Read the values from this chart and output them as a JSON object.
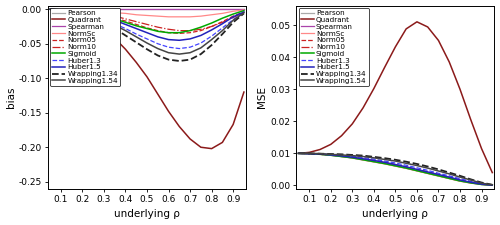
{
  "rho": [
    0.05,
    0.1,
    0.15,
    0.2,
    0.25,
    0.3,
    0.35,
    0.4,
    0.45,
    0.5,
    0.55,
    0.6,
    0.65,
    0.7,
    0.75,
    0.8,
    0.85,
    0.9,
    0.95
  ],
  "bias_ylim": [
    -0.26,
    0.005
  ],
  "bias_yticks": [
    -0.25,
    -0.2,
    -0.15,
    -0.1,
    -0.05,
    0.0
  ],
  "mse_ylim": [
    -0.001,
    0.056
  ],
  "mse_yticks": [
    0.0,
    0.01,
    0.02,
    0.03,
    0.04,
    0.05
  ],
  "xticks": [
    0.1,
    0.2,
    0.3,
    0.4,
    0.5,
    0.6,
    0.7,
    0.8,
    0.9
  ],
  "series": {
    "Pearson": {
      "color": "#aaaaaa",
      "linestyle": "solid",
      "linewidth": 0.9,
      "bias": [
        0.0,
        0.0,
        0.0,
        0.0,
        0.0,
        0.0,
        0.0,
        0.0,
        0.0,
        0.0,
        0.0,
        0.0,
        0.0,
        0.0,
        0.0,
        0.0,
        0.0,
        0.0,
        0.0
      ],
      "mse": [
        0.01,
        0.0099,
        0.0097,
        0.0094,
        0.009,
        0.0086,
        0.008,
        0.0074,
        0.0068,
        0.0061,
        0.0054,
        0.0046,
        0.0038,
        0.003,
        0.0022,
        0.0014,
        0.0008,
        0.0003,
        0.0001
      ]
    },
    "Quadrant": {
      "color": "#8b1a1a",
      "linestyle": "solid",
      "linewidth": 1.1,
      "bias": [
        0.0,
        -0.002,
        -0.005,
        -0.01,
        -0.018,
        -0.028,
        -0.042,
        -0.058,
        -0.077,
        -0.098,
        -0.123,
        -0.148,
        -0.17,
        -0.188,
        -0.2,
        -0.202,
        -0.193,
        -0.167,
        -0.12
      ],
      "mse": [
        0.01,
        0.0103,
        0.0112,
        0.0128,
        0.0155,
        0.0192,
        0.0242,
        0.0302,
        0.0368,
        0.0432,
        0.0488,
        0.051,
        0.0494,
        0.0452,
        0.0385,
        0.03,
        0.0205,
        0.0115,
        0.004
      ]
    },
    "Spearman": {
      "color": "#aa44aa",
      "linestyle": "solid",
      "linewidth": 0.9,
      "bias": [
        0.0,
        0.0,
        0.0,
        0.0,
        0.0,
        0.0,
        0.0,
        0.0,
        0.0,
        0.0,
        0.0,
        0.0,
        0.0,
        0.0,
        0.0,
        0.0,
        0.0,
        0.0,
        0.0
      ],
      "mse": [
        0.01,
        0.0099,
        0.0097,
        0.0094,
        0.009,
        0.0086,
        0.008,
        0.0074,
        0.0068,
        0.0061,
        0.0054,
        0.0046,
        0.0038,
        0.003,
        0.0022,
        0.0014,
        0.0008,
        0.0003,
        0.0001
      ]
    },
    "NormSc": {
      "color": "#ff8888",
      "linestyle": "solid",
      "linewidth": 0.9,
      "bias": [
        0.0,
        -0.001,
        -0.001,
        -0.002,
        -0.003,
        -0.004,
        -0.005,
        -0.006,
        -0.008,
        -0.009,
        -0.01,
        -0.011,
        -0.011,
        -0.011,
        -0.01,
        -0.008,
        -0.006,
        -0.003,
        -0.001
      ],
      "mse": [
        0.01,
        0.0099,
        0.0097,
        0.0094,
        0.009,
        0.0085,
        0.0079,
        0.0073,
        0.0067,
        0.006,
        0.0053,
        0.0045,
        0.0037,
        0.0029,
        0.0021,
        0.0013,
        0.0007,
        0.0003,
        0.0001
      ]
    },
    "Norm05": {
      "color": "#cc2222",
      "linestyle": "dashed",
      "linewidth": 0.9,
      "bias": [
        0.0,
        -0.001,
        -0.002,
        -0.004,
        -0.006,
        -0.009,
        -0.013,
        -0.017,
        -0.022,
        -0.027,
        -0.031,
        -0.034,
        -0.035,
        -0.034,
        -0.031,
        -0.025,
        -0.018,
        -0.01,
        -0.004
      ],
      "mse": [
        0.01,
        0.0099,
        0.0097,
        0.0095,
        0.0092,
        0.0088,
        0.0083,
        0.0078,
        0.0072,
        0.0065,
        0.0058,
        0.005,
        0.0042,
        0.0034,
        0.0025,
        0.0017,
        0.001,
        0.0004,
        0.0001
      ]
    },
    "Norm10": {
      "color": "#cc2222",
      "linestyle": "dashdot",
      "linewidth": 0.9,
      "bias": [
        0.0,
        -0.001,
        -0.002,
        -0.003,
        -0.005,
        -0.007,
        -0.01,
        -0.014,
        -0.018,
        -0.022,
        -0.026,
        -0.029,
        -0.031,
        -0.031,
        -0.029,
        -0.025,
        -0.019,
        -0.012,
        -0.005
      ],
      "mse": [
        0.01,
        0.0099,
        0.0097,
        0.0095,
        0.0091,
        0.0087,
        0.0082,
        0.0077,
        0.0071,
        0.0064,
        0.0057,
        0.0049,
        0.0041,
        0.0033,
        0.0025,
        0.0016,
        0.0009,
        0.0004,
        0.0001
      ]
    },
    "Sigmoid": {
      "color": "#00aa00",
      "linestyle": "solid",
      "linewidth": 1.1,
      "bias": [
        0.0,
        -0.001,
        -0.002,
        -0.004,
        -0.007,
        -0.01,
        -0.014,
        -0.019,
        -0.024,
        -0.028,
        -0.032,
        -0.034,
        -0.034,
        -0.031,
        -0.026,
        -0.02,
        -0.013,
        -0.007,
        -0.002
      ],
      "mse": [
        0.01,
        0.0099,
        0.0097,
        0.0094,
        0.009,
        0.0086,
        0.008,
        0.0074,
        0.0068,
        0.0061,
        0.0054,
        0.0046,
        0.0038,
        0.003,
        0.0022,
        0.0014,
        0.0008,
        0.0003,
        0.0001
      ]
    },
    "Huber1.3": {
      "color": "#4444ff",
      "linestyle": "dashed",
      "linewidth": 0.9,
      "bias": [
        0.0,
        -0.001,
        -0.003,
        -0.006,
        -0.01,
        -0.015,
        -0.021,
        -0.028,
        -0.036,
        -0.043,
        -0.05,
        -0.055,
        -0.057,
        -0.055,
        -0.049,
        -0.039,
        -0.027,
        -0.015,
        -0.005
      ],
      "mse": [
        0.01,
        0.0099,
        0.0098,
        0.0096,
        0.0094,
        0.0091,
        0.0087,
        0.0082,
        0.0076,
        0.007,
        0.0063,
        0.0055,
        0.0047,
        0.0038,
        0.003,
        0.0021,
        0.0013,
        0.0005,
        0.0001
      ]
    },
    "Huber1.5": {
      "color": "#2222bb",
      "linestyle": "solid",
      "linewidth": 1.1,
      "bias": [
        0.0,
        -0.001,
        -0.002,
        -0.004,
        -0.007,
        -0.011,
        -0.016,
        -0.022,
        -0.028,
        -0.034,
        -0.04,
        -0.044,
        -0.045,
        -0.043,
        -0.038,
        -0.03,
        -0.021,
        -0.011,
        -0.004
      ],
      "mse": [
        0.01,
        0.0099,
        0.0098,
        0.0095,
        0.0092,
        0.0088,
        0.0083,
        0.0078,
        0.0072,
        0.0065,
        0.0058,
        0.005,
        0.0042,
        0.0034,
        0.0026,
        0.0017,
        0.001,
        0.0004,
        0.0001
      ]
    },
    "Wrapping1.34": {
      "color": "#222222",
      "linestyle": "dashed",
      "linewidth": 1.3,
      "bias": [
        0.0,
        -0.002,
        -0.004,
        -0.008,
        -0.013,
        -0.02,
        -0.028,
        -0.038,
        -0.048,
        -0.058,
        -0.067,
        -0.073,
        -0.075,
        -0.073,
        -0.065,
        -0.052,
        -0.036,
        -0.019,
        -0.006
      ],
      "mse": [
        0.01,
        0.01,
        0.0099,
        0.0098,
        0.0097,
        0.0095,
        0.0093,
        0.0089,
        0.0085,
        0.008,
        0.0074,
        0.0067,
        0.0059,
        0.005,
        0.004,
        0.003,
        0.0019,
        0.0009,
        0.0002
      ]
    },
    "Wrapping1.54": {
      "color": "#444444",
      "linestyle": "solid",
      "linewidth": 1.1,
      "bias": [
        0.0,
        -0.001,
        -0.003,
        -0.006,
        -0.01,
        -0.016,
        -0.023,
        -0.031,
        -0.04,
        -0.049,
        -0.057,
        -0.063,
        -0.065,
        -0.063,
        -0.056,
        -0.044,
        -0.031,
        -0.016,
        -0.005
      ],
      "mse": [
        0.01,
        0.01,
        0.0099,
        0.0097,
        0.0095,
        0.0093,
        0.009,
        0.0086,
        0.0081,
        0.0076,
        0.0069,
        0.0062,
        0.0054,
        0.0045,
        0.0036,
        0.0026,
        0.0017,
        0.0007,
        0.0002
      ]
    }
  },
  "series_order": [
    "Pearson",
    "Quadrant",
    "Spearman",
    "NormSc",
    "Norm05",
    "Norm10",
    "Sigmoid",
    "Huber1.3",
    "Huber1.5",
    "Wrapping1.34",
    "Wrapping1.54"
  ],
  "xlabel": "underlying ρ",
  "ylabel_bias": "bias",
  "ylabel_mse": "MSE",
  "figsize": [
    5.0,
    2.25
  ],
  "dpi": 100
}
